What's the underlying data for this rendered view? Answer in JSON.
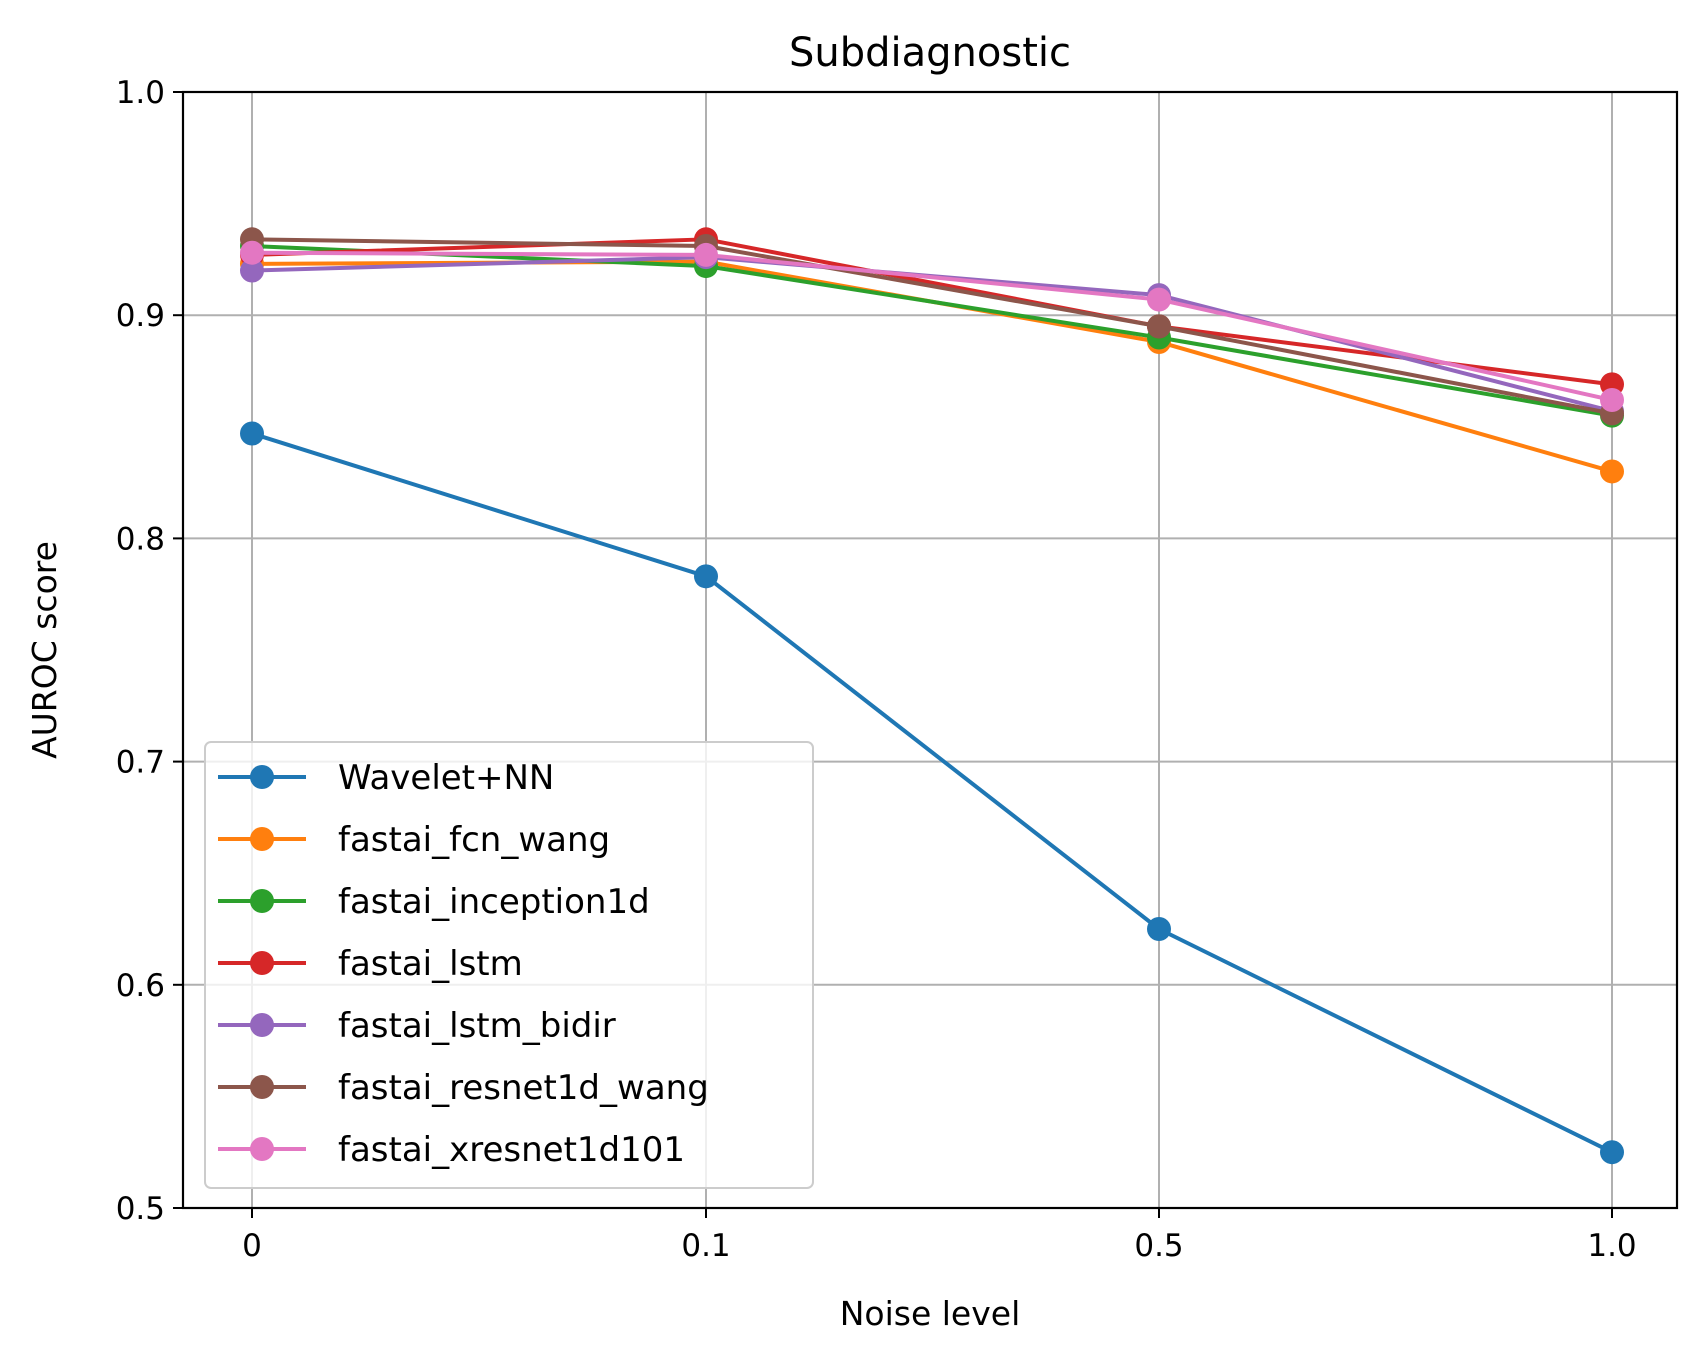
{
  "chart_data": {
    "type": "line",
    "title": "Subdiagnostic",
    "xlabel": "Noise level",
    "ylabel": "AUROC score",
    "categories": [
      "0",
      "0.1",
      "0.5",
      "1.0"
    ],
    "ylim": [
      0.5,
      1.0
    ],
    "yticks": [
      0.5,
      0.6,
      0.7,
      0.8,
      0.9,
      1.0
    ],
    "ytick_labels": [
      "0.5",
      "0.6",
      "0.7",
      "0.8",
      "0.9",
      "1.0"
    ],
    "grid": true,
    "legend_position": "lower-left",
    "series": [
      {
        "name": "Wavelet+NN",
        "color": "#1f77b4",
        "values": [
          0.847,
          0.783,
          0.625,
          0.525
        ]
      },
      {
        "name": "fastai_fcn_wang",
        "color": "#ff7f0e",
        "values": [
          0.923,
          0.924,
          0.888,
          0.83
        ]
      },
      {
        "name": "fastai_inception1d",
        "color": "#2ca02c",
        "values": [
          0.931,
          0.922,
          0.89,
          0.855
        ]
      },
      {
        "name": "fastai_lstm",
        "color": "#d62728",
        "values": [
          0.927,
          0.934,
          0.895,
          0.869
        ]
      },
      {
        "name": "fastai_lstm_bidir",
        "color": "#9467bd",
        "values": [
          0.92,
          0.926,
          0.909,
          0.857
        ]
      },
      {
        "name": "fastai_resnet1d_wang",
        "color": "#8c564b",
        "values": [
          0.934,
          0.931,
          0.895,
          0.856
        ]
      },
      {
        "name": "fastai_xresnet1d101",
        "color": "#e377c2",
        "values": [
          0.928,
          0.927,
          0.907,
          0.862
        ]
      }
    ]
  }
}
